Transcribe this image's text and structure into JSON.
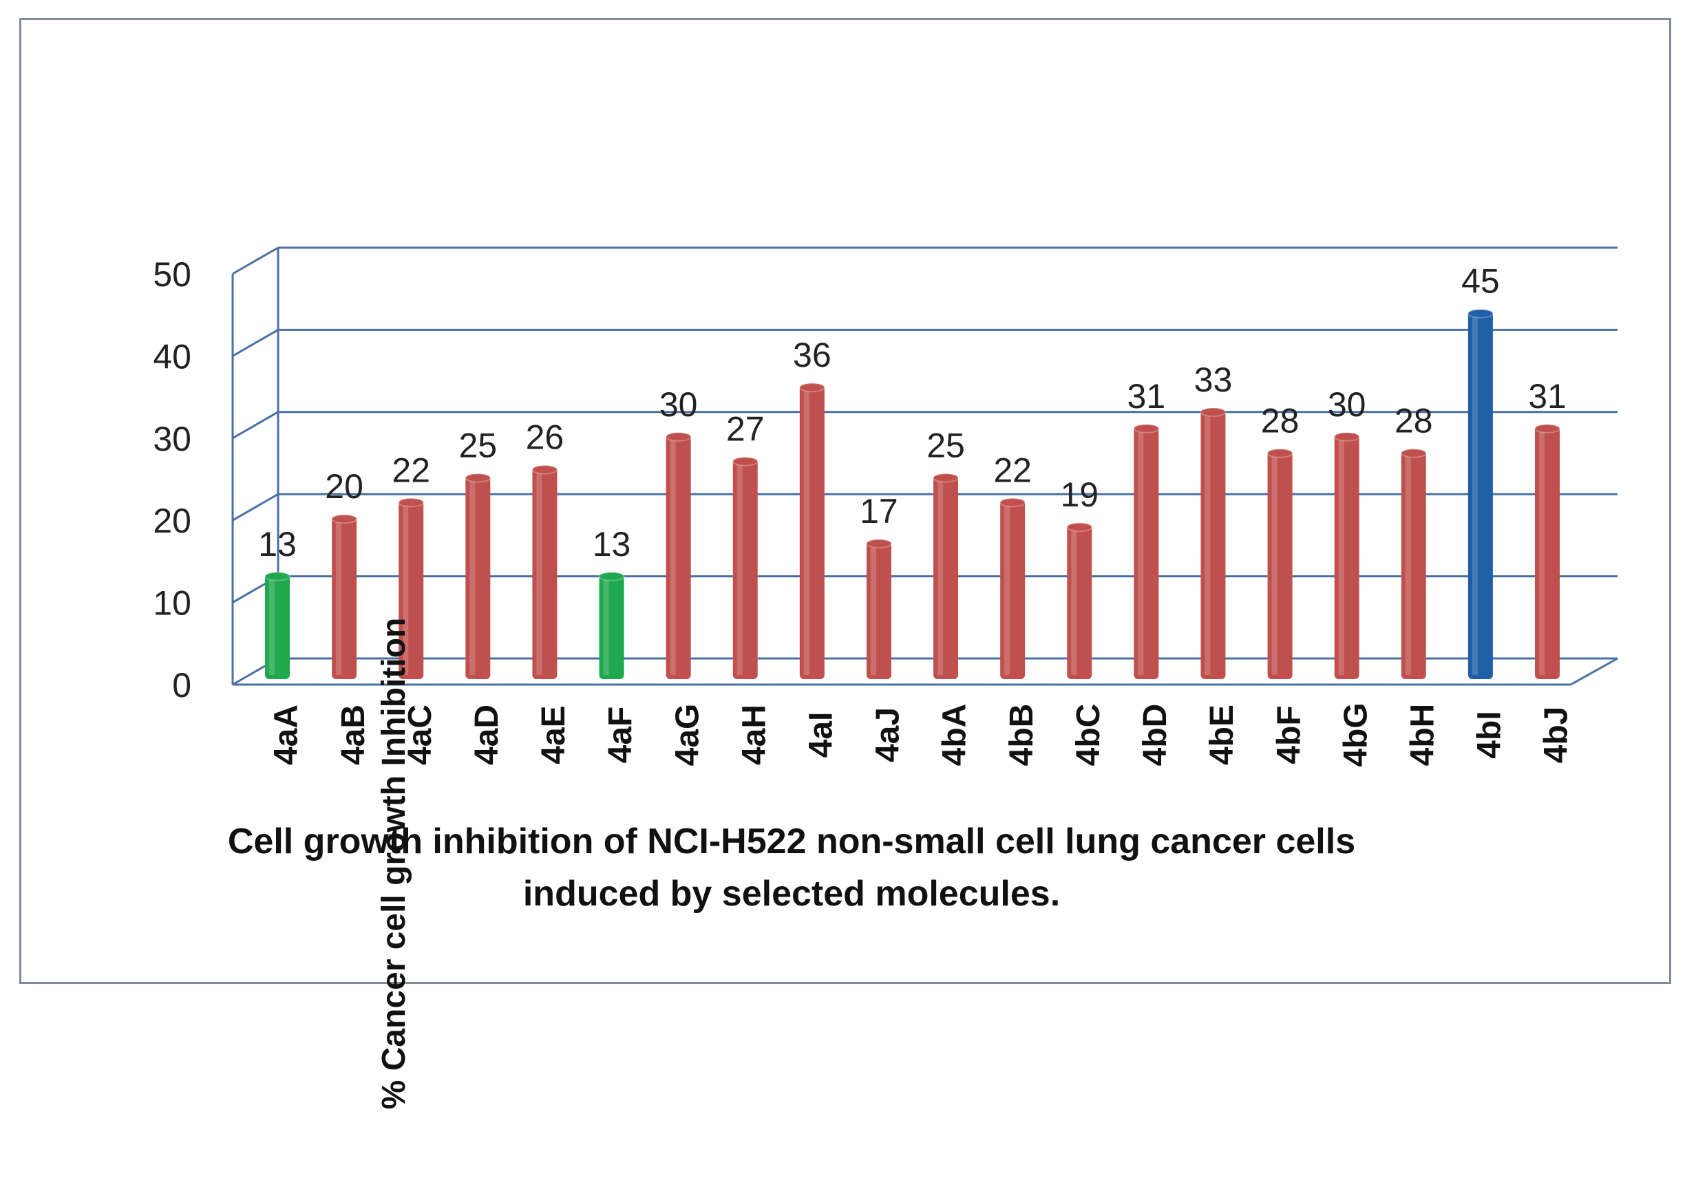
{
  "chart_data": {
    "type": "bar",
    "title": "",
    "ylabel": "% Cancer cell growth Inhibition",
    "xlabel_lines": [
      "Cell growth inhibition of NCI-H522 non-small cell lung cancer cells",
      "induced by selected molecules."
    ],
    "ylim": [
      0,
      50
    ],
    "yticks": [
      0,
      10,
      20,
      30,
      40,
      50
    ],
    "grid": true,
    "categories": [
      "4aA",
      "4aB",
      "4aC",
      "4aD",
      "4aE",
      "4aF",
      "4aG",
      "4aH",
      "4aI",
      "4aJ",
      "4bA",
      "4bB",
      "4bC",
      "4bD",
      "4bE",
      "4bF",
      "4bG",
      "4bH",
      "4bI",
      "4bJ"
    ],
    "values": [
      13,
      20,
      22,
      25,
      26,
      13,
      30,
      27,
      36,
      17,
      25,
      22,
      19,
      31,
      33,
      28,
      30,
      28,
      45,
      31
    ],
    "bar_colors": [
      "#1fa84e",
      "#c0504d",
      "#c0504d",
      "#c0504d",
      "#c0504d",
      "#1fa84e",
      "#c0504d",
      "#c0504d",
      "#c0504d",
      "#c0504d",
      "#c0504d",
      "#c0504d",
      "#c0504d",
      "#c0504d",
      "#c0504d",
      "#c0504d",
      "#c0504d",
      "#c0504d",
      "#1f5fa8",
      "#c0504d"
    ],
    "grid_color": "#4a6fa5"
  }
}
